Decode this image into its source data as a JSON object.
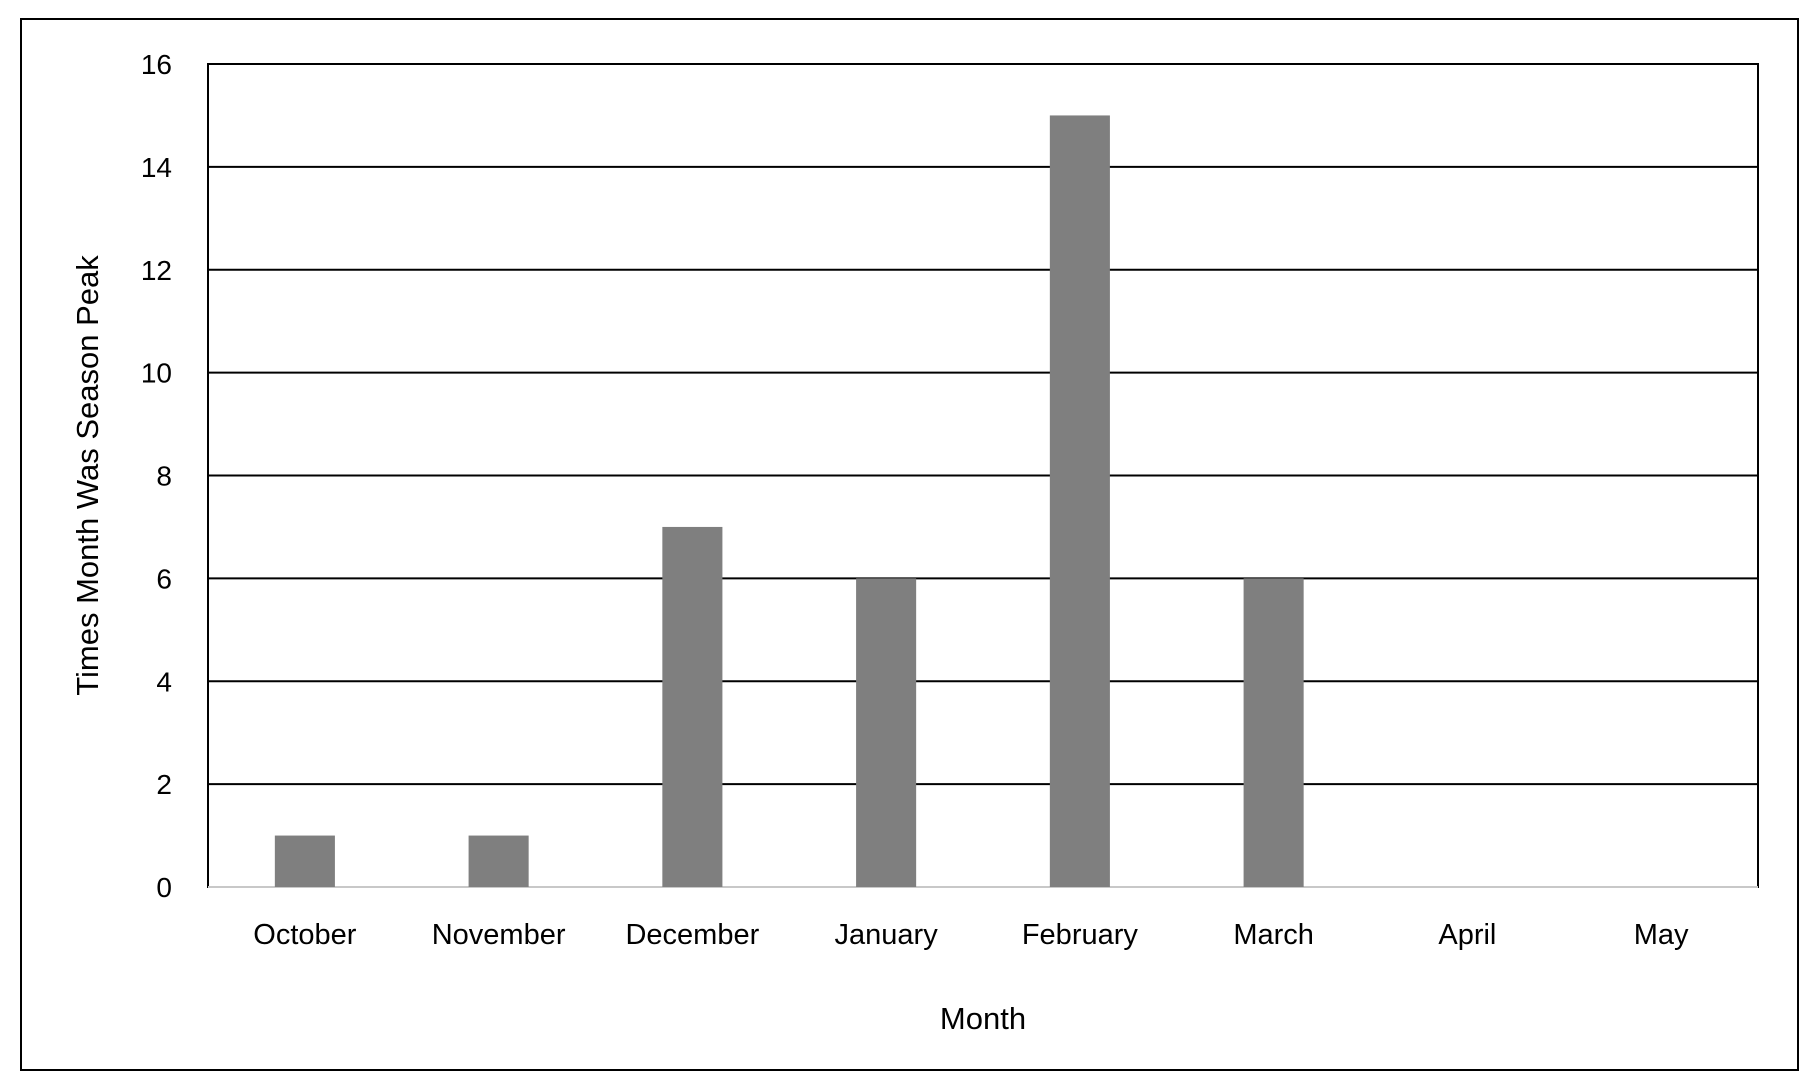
{
  "chart_data": {
    "type": "bar",
    "title": "",
    "xlabel": "Month",
    "ylabel": "Times Month Was Season Peak",
    "categories": [
      "October",
      "November",
      "December",
      "January",
      "February",
      "March",
      "April",
      "May"
    ],
    "values": [
      1,
      1,
      7,
      6,
      15,
      6,
      0,
      0
    ],
    "ylim": [
      0,
      16
    ],
    "yticks": [
      "0",
      "2",
      "4",
      "6",
      "8",
      "10",
      "12",
      "14",
      "16"
    ],
    "grid": true,
    "legend": "none",
    "colors": {
      "bar": "#7f7f7f",
      "gridline": "#000000",
      "axis": "#000000",
      "frame": "#000000"
    }
  }
}
